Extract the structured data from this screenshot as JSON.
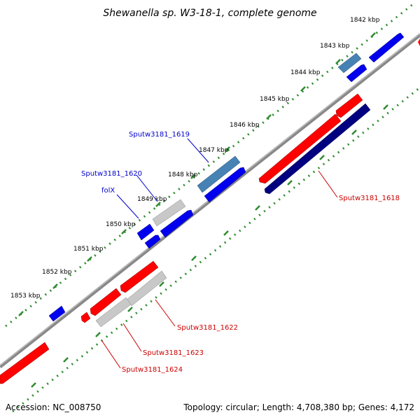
{
  "title": "Shewanella sp. W3-18-1, complete genome",
  "accession": "Accession: NC_008750",
  "topology": "Topology: circular; Length: 4,708,380 bp; Genes: 4,172",
  "colors": {
    "backbone": "#888888",
    "ruler_dot": "#2e8b2e",
    "forward": "#0000ff",
    "forward_light": "#4682b4",
    "reverse": "#ff0000",
    "reverse_dark": "#000080",
    "neutral": "#c8c8c8",
    "label_blue": "#0000cc",
    "label_red": "#cc0000"
  },
  "ruler_labels": [
    "1842 kbp",
    "1843 kbp",
    "1844 kbp",
    "1845 kbp",
    "1846 kbp",
    "1847 kbp",
    "1848 kbp",
    "1849 kbp",
    "1850 kbp",
    "1851 kbp",
    "1852 kbp",
    "1853 kbp"
  ],
  "gene_labels": {
    "sputw3181_1619": "Sputw3181_1619",
    "sputw3181_1620": "Sputw3181_1620",
    "folx": "folX",
    "sputw3181_1618": "Sputw3181_1618",
    "sputw3181_1622": "Sputw3181_1622",
    "sputw3181_1623": "Sputw3181_1623",
    "sputw3181_1624": "Sputw3181_1624"
  }
}
